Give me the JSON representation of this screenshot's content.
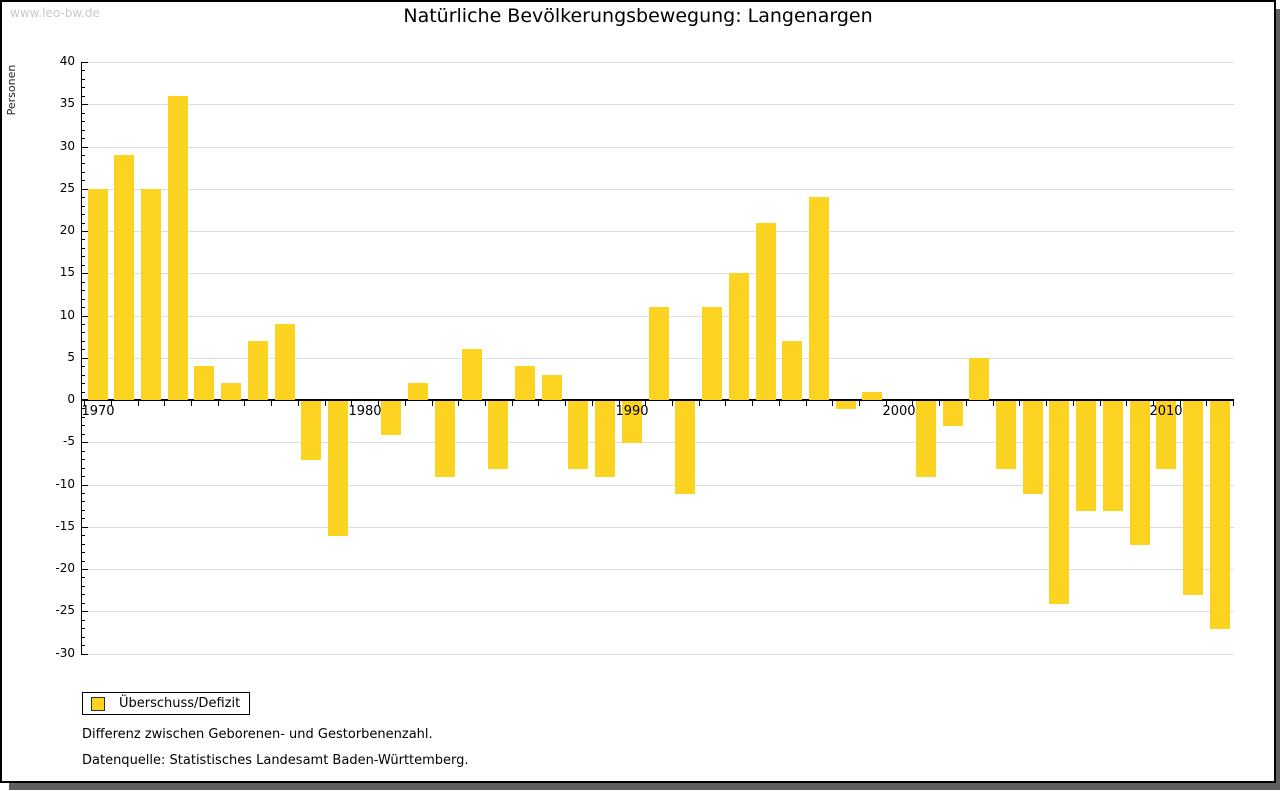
{
  "watermark": "www.leo-bw.de",
  "chart_data": {
    "type": "bar",
    "title": "Natürliche Bevölkerungsbewegung: Langenargen",
    "ylabel": "Personen",
    "legend": "Überschuss/Defizit",
    "years": [
      1970,
      1971,
      1972,
      1973,
      1974,
      1975,
      1976,
      1977,
      1978,
      1979,
      1980,
      1981,
      1982,
      1983,
      1984,
      1985,
      1986,
      1987,
      1988,
      1989,
      1990,
      1991,
      1992,
      1993,
      1994,
      1995,
      1996,
      1997,
      1998,
      1999,
      2000,
      2001,
      2002,
      2003,
      2004,
      2005,
      2006,
      2007,
      2008,
      2009,
      2010,
      2011,
      2012
    ],
    "values": [
      25,
      29,
      25,
      36,
      4,
      2,
      7,
      9,
      -7,
      -16,
      0,
      -4,
      2,
      -9,
      6,
      -8,
      4,
      3,
      -8,
      -9,
      -5,
      11,
      -11,
      11,
      15,
      21,
      7,
      24,
      -1,
      1,
      0,
      -9,
      -3,
      5,
      -8,
      -11,
      -24,
      -13,
      -13,
      -17,
      -8,
      -23,
      -27
    ],
    "ylim": [
      -30,
      40
    ],
    "ytick_step": 5,
    "xtick_labels": [
      1970,
      1980,
      1990,
      2000,
      2010
    ],
    "grid": true,
    "legend_position": "bottom-left",
    "bar_color": "#FCD320",
    "grid_color": "#dcdcdc",
    "axis_color": "#000000"
  },
  "footer": {
    "note": "Differenz zwischen Geborenen- und Gestorbenenzahl.",
    "source": "Datenquelle: Statistisches Landesamt Baden-Württemberg."
  }
}
